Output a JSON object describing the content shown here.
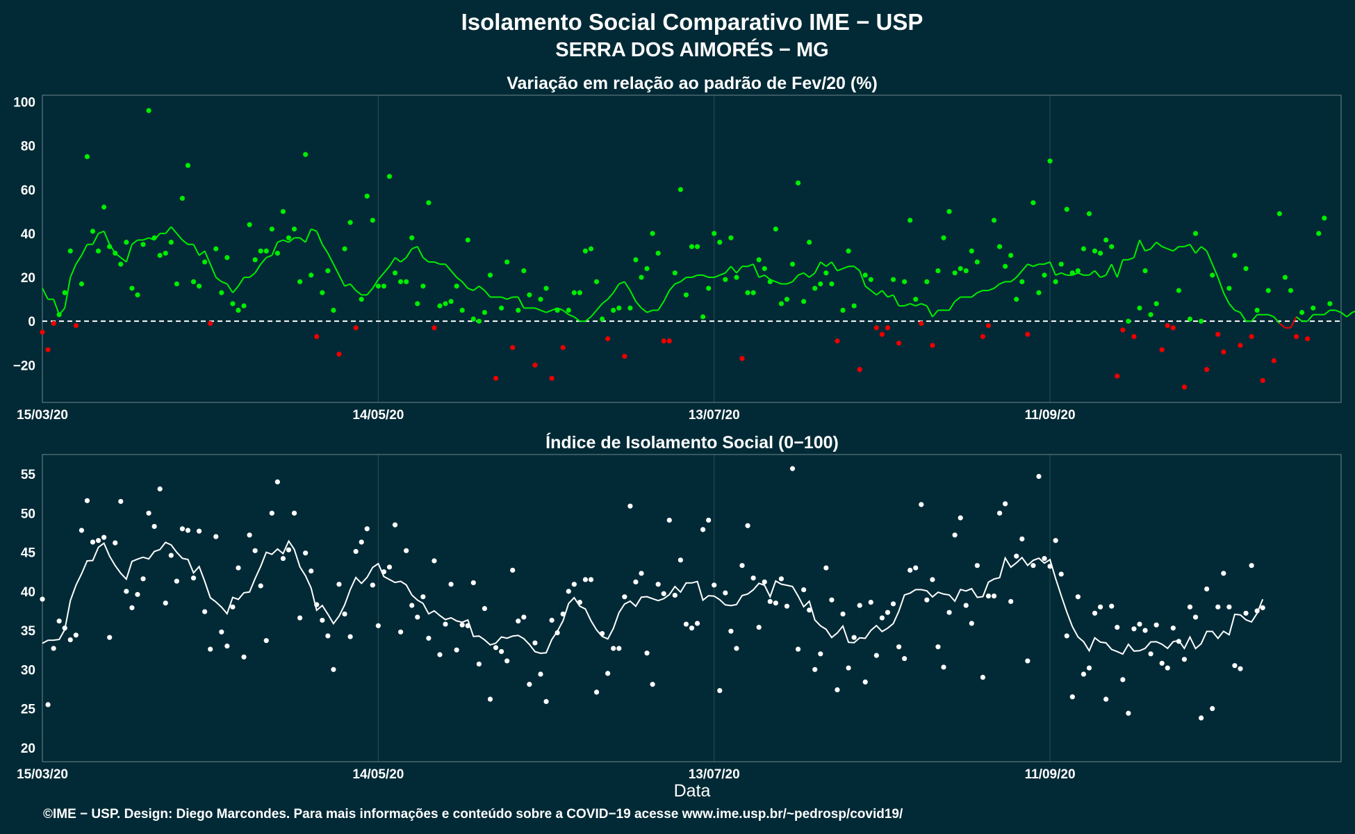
{
  "title_line1": "Isolamento Social Comparativo IME − USP",
  "title_line2": "SERRA DOS AIMORÉS − MG",
  "footer": "©IME − USP. Design: Diego Marcondes. Para mais informações e conteúdo sobre a COVID−19 acesse www.ime.usp.br/~pedrosp/covid19/",
  "colors": {
    "background": "#022a36",
    "positive": "#00ee00",
    "negative": "#ee0000",
    "index": "#ffffff"
  },
  "chart_data": [
    {
      "type": "scatter",
      "title": "Variação em relação ao padrão de Fev/20 (%)",
      "xlabel": "",
      "ylabel": "",
      "x_start": "15/03/20",
      "x_end": "02/11/20",
      "xticks": [
        "15/03/20",
        "14/05/20",
        "13/07/20",
        "11/09/20"
      ],
      "yticks": [
        -20,
        0,
        20,
        40,
        60,
        80,
        100
      ],
      "ylim": [
        -37,
        103
      ],
      "reference_line": 0,
      "grid": true,
      "points_y": [
        -5,
        -13,
        -1,
        3,
        13,
        32,
        -2,
        17,
        75,
        41,
        32,
        52,
        34,
        31,
        26,
        36,
        15,
        12,
        35,
        96,
        38,
        30,
        31,
        36,
        17,
        56,
        71,
        18,
        16,
        27,
        -1,
        33,
        13,
        29,
        8,
        5,
        7,
        44,
        28,
        32,
        32,
        42,
        31,
        50,
        38,
        42,
        18,
        76,
        21,
        -7,
        13,
        23,
        5,
        -15,
        33,
        45,
        -3,
        10,
        57,
        46,
        16,
        16,
        66,
        22,
        18,
        18,
        38,
        8,
        16,
        54,
        -3,
        7,
        8,
        9,
        16,
        5,
        37,
        1,
        0,
        4,
        21,
        -26,
        6,
        27,
        -12,
        5,
        23,
        12,
        -20,
        10,
        15,
        -26,
        5,
        -12,
        5,
        13,
        13,
        32,
        33,
        18,
        1,
        -8,
        5,
        6,
        -16,
        6,
        28,
        20,
        24,
        40,
        31,
        -9,
        -9,
        22,
        60,
        12,
        34,
        34,
        2,
        15,
        40,
        36,
        19,
        38,
        20,
        -17,
        13,
        13,
        28,
        24,
        18,
        42,
        8,
        10,
        26,
        63,
        9,
        36,
        15,
        17,
        22,
        17,
        -9,
        5,
        32,
        7,
        -22,
        21,
        19,
        -3,
        -6,
        -3,
        19,
        -10,
        18,
        46,
        10,
        -1,
        18,
        -11,
        23,
        38,
        50,
        22,
        24,
        23,
        32,
        27,
        -7,
        -2,
        46,
        34,
        25,
        30,
        10,
        18,
        -6,
        54,
        13,
        21,
        73,
        18,
        26,
        51,
        22,
        23,
        33,
        49,
        32,
        31,
        37,
        34,
        -25,
        -4,
        0,
        -7,
        6,
        23,
        3,
        8,
        -13,
        -2,
        -3,
        14,
        -30,
        1,
        40,
        0,
        -22,
        21,
        -6,
        -14,
        15,
        30,
        -11,
        24,
        -7,
        5,
        -27,
        14,
        -18,
        49,
        20,
        14,
        -7,
        4,
        -8,
        6,
        40,
        47,
        8
      ],
      "moving_avg_y": [
        15,
        10,
        10,
        3,
        6,
        20,
        26,
        30,
        35,
        35,
        40,
        41,
        35,
        31,
        29,
        27,
        35,
        37,
        37,
        38,
        37,
        40,
        40,
        43,
        40,
        37,
        35,
        35,
        30,
        32,
        26,
        20,
        18,
        17,
        13,
        16,
        20,
        20,
        22,
        26,
        29,
        30,
        36,
        37,
        36,
        38,
        38,
        36,
        42,
        41,
        35,
        31,
        26,
        21,
        16,
        17,
        14,
        12,
        12,
        15,
        19,
        22,
        25,
        29,
        27,
        29,
        33,
        34,
        29,
        27,
        27,
        26,
        26,
        23,
        20,
        18,
        15,
        14,
        16,
        14,
        11,
        11,
        11,
        10,
        11,
        11,
        6,
        6,
        6,
        5,
        4,
        5,
        6,
        5,
        3,
        2,
        0,
        0,
        2,
        5,
        8,
        10,
        13,
        17,
        18,
        14,
        9,
        6,
        4,
        5,
        5,
        9,
        14,
        17,
        18,
        20,
        20,
        21,
        21,
        20,
        20,
        21,
        22,
        25,
        22,
        25,
        25,
        26,
        20,
        21,
        19,
        18,
        17,
        17,
        18,
        21,
        22,
        20,
        22,
        27,
        25,
        27,
        23,
        24,
        25,
        25,
        23,
        16,
        14,
        12,
        14,
        11,
        12,
        7,
        7,
        8,
        7,
        8,
        7,
        2,
        5,
        5,
        5,
        9,
        11,
        11,
        11,
        13,
        14,
        14,
        15,
        17,
        18,
        18,
        20,
        23,
        26,
        25,
        26,
        26,
        27,
        21,
        22,
        21,
        21,
        22,
        21,
        21,
        23,
        20,
        21,
        26,
        20,
        28,
        28,
        29,
        37,
        32,
        33,
        36,
        34,
        33,
        32,
        34,
        34,
        35,
        31,
        34,
        32,
        26,
        20,
        13,
        8,
        5,
        4,
        0,
        0,
        3,
        3,
        3,
        2,
        -1,
        -3,
        -3,
        2,
        0,
        0,
        3,
        3,
        3,
        5,
        5,
        4,
        2,
        4,
        5,
        1,
        5,
        3,
        8,
        8,
        5,
        8,
        7,
        5,
        15,
        14,
        13
      ]
    },
    {
      "type": "scatter",
      "title": "Índice de Isolamento Social (0−100)",
      "xlabel": "Data",
      "ylabel": "",
      "x_start": "15/03/20",
      "x_end": "02/11/20",
      "xticks": [
        "15/03/20",
        "14/05/20",
        "13/07/20",
        "11/09/20"
      ],
      "yticks": [
        20,
        25,
        30,
        35,
        40,
        45,
        50,
        55
      ],
      "ylim": [
        18.2,
        57.5
      ],
      "grid": true,
      "points_y": [
        39,
        25.5,
        32.7,
        36.2,
        35.3,
        33.8,
        34.4,
        47.8,
        51.6,
        46.3,
        46.5,
        46.9,
        34.1,
        46.2,
        51.5,
        40,
        37.9,
        39.6,
        41.6,
        50,
        48.3,
        53.1,
        38.5,
        44.6,
        41.3,
        48,
        47.8,
        41.7,
        47.7,
        37.4,
        32.6,
        47,
        34.8,
        33,
        38,
        43,
        31.6,
        47.2,
        45.2,
        40.7,
        33.7,
        50,
        54,
        44.2,
        45.3,
        50,
        36.6,
        44.9,
        42.6,
        38.3,
        36.3,
        34.3,
        30,
        40.9,
        37.1,
        34.2,
        45.1,
        46.3,
        48,
        40.8,
        35.6,
        42.5,
        43.1,
        48.5,
        34.8,
        45.2,
        38.2,
        36.7,
        39.3,
        34,
        43.9,
        31.9,
        35.8,
        40.9,
        32.5,
        35.7,
        35.6,
        41.1,
        30.7,
        37.8,
        26.2,
        32.8,
        32.3,
        31.1,
        42.7,
        36.2,
        36.7,
        28.1,
        33.4,
        29.4,
        25.9,
        36.3,
        34.7,
        37.1,
        40,
        40.9,
        38.6,
        41.5,
        41.5,
        27.1,
        34.6,
        29.5,
        32.7,
        32.7,
        39.3,
        50.9,
        41.2,
        42.3,
        32.1,
        28.1,
        40.9,
        39.7,
        49.1,
        39.5,
        44,
        35.8,
        35.3,
        35.9,
        47.9,
        49.1,
        40.8,
        27.3,
        39.8,
        34.9,
        32.7,
        43.3,
        48.4,
        41.7,
        35.4,
        41.2,
        38.7,
        38.5,
        41.6,
        38.1,
        55.7,
        32.6,
        40.2,
        37.6,
        30,
        32,
        43,
        38.9,
        27.4,
        37.1,
        30.2,
        34.1,
        38.2,
        28.4,
        38.6,
        31.8,
        36.6,
        37.3,
        38.4,
        32.9,
        31.4,
        42.7,
        43,
        51.1,
        38.9,
        41.5,
        32.9,
        30.3,
        37.3,
        47.2,
        49.4,
        38.2,
        35.9,
        43.3,
        29,
        39.4,
        39.4,
        50,
        51.2,
        38.7,
        44.5,
        46.7,
        31.1,
        43.3,
        54.7,
        44.2,
        43.2,
        46.5,
        42.2,
        34.3,
        26.5,
        39.3,
        29.4,
        30.2,
        37.2,
        38,
        26.2,
        38.1,
        35.4,
        28.7,
        24.4,
        35.2,
        35.8,
        35,
        32,
        35.7,
        30.8,
        30.2,
        35.3,
        33.6,
        31.3,
        38,
        36.7,
        23.8,
        40.3,
        25,
        38,
        42.3,
        38,
        30.5,
        30.1,
        37.2,
        43.3,
        37.5,
        37.9
      ]
    }
  ]
}
